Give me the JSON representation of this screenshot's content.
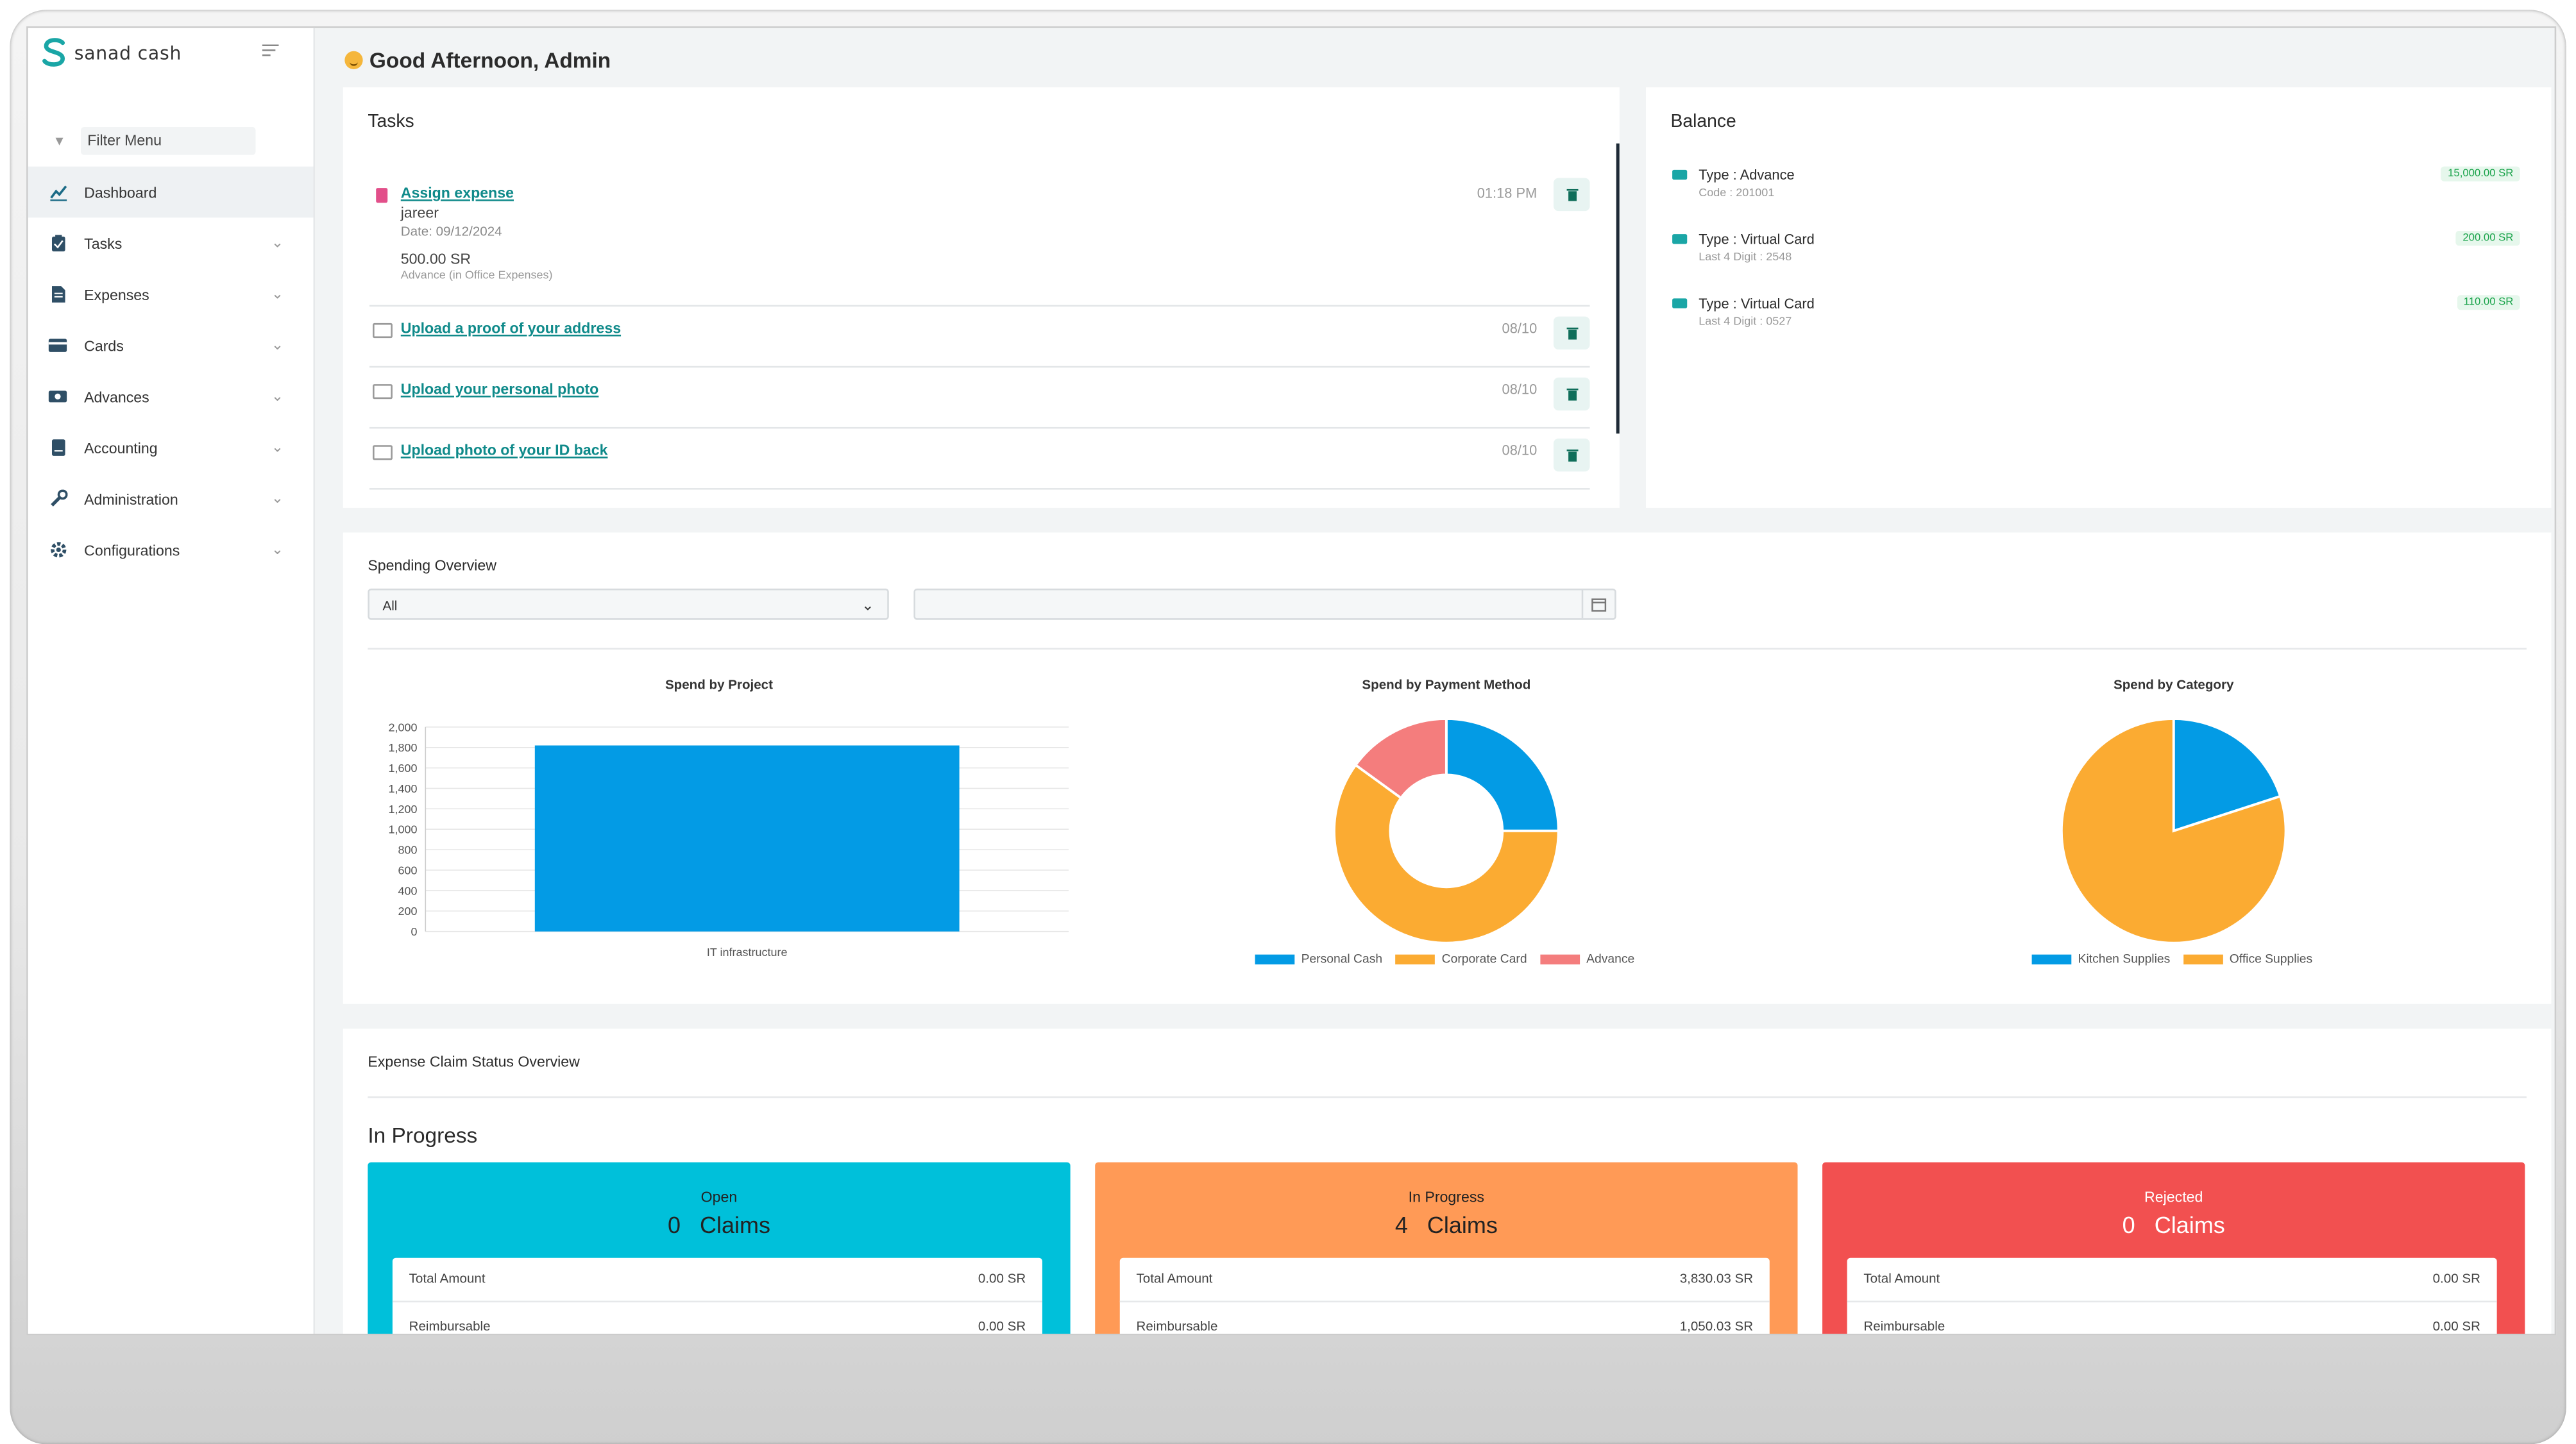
{
  "brand": {
    "name": "sanad cash",
    "color": "#1aa6a6"
  },
  "sidebar": {
    "filter_placeholder": "Filter Menu",
    "items": [
      {
        "label": "Dashboard",
        "icon": "chart-icon",
        "active": true
      },
      {
        "label": "Tasks",
        "icon": "clipboard-icon"
      },
      {
        "label": "Expenses",
        "icon": "document-icon"
      },
      {
        "label": "Cards",
        "icon": "card-icon"
      },
      {
        "label": "Advances",
        "icon": "money-icon"
      },
      {
        "label": "Accounting",
        "icon": "ledger-icon"
      },
      {
        "label": "Administration",
        "icon": "wrench-icon"
      },
      {
        "label": "Configurations",
        "icon": "gear-icon"
      }
    ]
  },
  "header": {
    "greeting": "Good Afternoon, Admin"
  },
  "tasks": {
    "title": "Tasks",
    "items": [
      {
        "title": "Assign expense",
        "person": "jareer",
        "date": "Date: 09/12/2024",
        "amount": "500.00 SR",
        "category": "Advance (in Office Expenses)",
        "time": "01:18 PM"
      },
      {
        "title": "Upload a proof of your address",
        "time": "08/10"
      },
      {
        "title": "Upload your personal photo",
        "time": "08/10"
      },
      {
        "title": "Upload photo of your ID back",
        "time": "08/10"
      }
    ]
  },
  "balance": {
    "title": "Balance",
    "items": [
      {
        "type": "Type : Advance",
        "sub": "Code : 201001",
        "amount": "15,000.00 SR"
      },
      {
        "type": "Type : Virtual Card",
        "sub": "Last 4 Digit : 2548",
        "amount": "200.00 SR"
      },
      {
        "type": "Type : Virtual Card",
        "sub": "Last 4 Digit : 0527",
        "amount": "110.00 SR"
      }
    ]
  },
  "spending": {
    "title": "Spending Overview",
    "filter_value": "All",
    "date_value": ""
  },
  "chart_data": [
    {
      "type": "bar",
      "title": "Spend by Project",
      "categories": [
        "IT infrastructure"
      ],
      "values": [
        1820
      ],
      "yticks": [
        "2,000",
        "1,800",
        "1,600",
        "1,400",
        "1,200",
        "1,000",
        "800",
        "600",
        "400",
        "200",
        "0"
      ],
      "ylim": [
        0,
        2000
      ],
      "color": "#039be5"
    },
    {
      "type": "pie",
      "variant": "donut",
      "title": "Spend by Payment Method",
      "labels": [
        "Personal Cash",
        "Corporate Card",
        "Advance"
      ],
      "values": [
        25,
        60,
        15
      ],
      "colors": [
        "#039be5",
        "#fbab32",
        "#f47d7d"
      ]
    },
    {
      "type": "pie",
      "title": "Spend by Category",
      "labels": [
        "Kitchen Supplies",
        "Office Supplies"
      ],
      "values": [
        20,
        80
      ],
      "colors": [
        "#039be5",
        "#fbab32"
      ]
    }
  ],
  "claims": {
    "title": "Expense Claim Status Overview",
    "subtitle": "In Progress",
    "cards": [
      {
        "label": "Open",
        "count": "0",
        "unit": "Claims",
        "total_label": "Total Amount",
        "total": "0.00 SR",
        "reimb_label": "Reimbursable",
        "reimb": "0.00 SR",
        "color": "#00c0da"
      },
      {
        "label": "In Progress",
        "count": "4",
        "unit": "Claims",
        "total_label": "Total Amount",
        "total": "3,830.03 SR",
        "reimb_label": "Reimbursable",
        "reimb": "1,050.03 SR",
        "color": "#ff9a56"
      },
      {
        "label": "Rejected",
        "count": "0",
        "unit": "Claims",
        "total_label": "Total Amount",
        "total": "0.00 SR",
        "reimb_label": "Reimbursable",
        "reimb": "0.00 SR",
        "color": "#f25050"
      }
    ]
  }
}
